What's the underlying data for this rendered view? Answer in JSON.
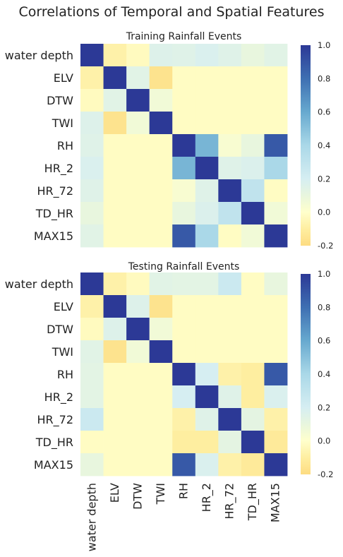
{
  "title": "Correlations of Temporal and Spatial Features",
  "chart_data": [
    {
      "type": "heatmap",
      "title": "Training Rainfall Events",
      "row_labels": [
        "water depth",
        "ELV",
        "DTW",
        "TWI",
        "RH",
        "HR_2",
        "HR_72",
        "TD_HR",
        "MAX15"
      ],
      "col_labels": [
        "water depth",
        "ELV",
        "DTW",
        "TWI",
        "RH",
        "HR_2",
        "HR_72",
        "TD_HR",
        "MAX15"
      ],
      "matrix": [
        [
          1.0,
          -0.08,
          -0.03,
          0.16,
          0.15,
          0.18,
          0.15,
          0.1,
          0.14
        ],
        [
          -0.08,
          1.0,
          0.14,
          -0.16,
          -0.02,
          -0.02,
          -0.02,
          -0.02,
          -0.02
        ],
        [
          -0.03,
          0.14,
          1.0,
          0.06,
          -0.02,
          -0.02,
          -0.02,
          -0.02,
          -0.02
        ],
        [
          0.16,
          -0.16,
          0.06,
          1.0,
          -0.02,
          -0.02,
          -0.02,
          -0.02,
          -0.02
        ],
        [
          0.15,
          -0.02,
          -0.02,
          -0.02,
          1.0,
          0.55,
          0.03,
          0.1,
          0.88
        ],
        [
          0.18,
          -0.02,
          -0.02,
          -0.02,
          0.55,
          1.0,
          0.15,
          0.17,
          0.4
        ],
        [
          0.15,
          -0.02,
          -0.02,
          -0.02,
          0.03,
          0.15,
          1.0,
          0.3,
          -0.02
        ],
        [
          0.1,
          -0.02,
          -0.02,
          -0.02,
          0.1,
          0.17,
          0.3,
          1.0,
          0.06
        ],
        [
          0.14,
          -0.02,
          -0.02,
          -0.02,
          0.88,
          0.4,
          -0.02,
          0.06,
          1.0
        ]
      ],
      "colorbar": {
        "min": -0.2,
        "max": 1.0,
        "ticks": [
          "1.0",
          "0.8",
          "0.6",
          "0.4",
          "0.2",
          "0.0",
          "-0.2"
        ]
      },
      "colormap": "RdYlBu-like (yellow to blue)"
    },
    {
      "type": "heatmap",
      "title": "Testing Rainfall Events",
      "row_labels": [
        "water depth",
        "ELV",
        "DTW",
        "TWI",
        "RH",
        "HR_2",
        "HR_72",
        "TD_HR",
        "MAX15"
      ],
      "col_labels": [
        "water depth",
        "ELV",
        "DTW",
        "TWI",
        "RH",
        "HR_2",
        "HR_72",
        "TD_HR",
        "MAX15"
      ],
      "matrix": [
        [
          1.0,
          -0.08,
          -0.03,
          0.14,
          0.13,
          0.13,
          0.25,
          -0.02,
          0.1
        ],
        [
          -0.08,
          1.0,
          0.16,
          -0.16,
          -0.02,
          -0.02,
          -0.02,
          -0.02,
          -0.02
        ],
        [
          -0.03,
          0.16,
          1.0,
          0.06,
          -0.02,
          -0.02,
          -0.02,
          -0.02,
          -0.02
        ],
        [
          0.14,
          -0.16,
          0.06,
          1.0,
          -0.02,
          -0.02,
          -0.02,
          -0.02,
          -0.02
        ],
        [
          0.13,
          -0.02,
          -0.02,
          -0.02,
          1.0,
          0.2,
          -0.08,
          -0.1,
          0.88
        ],
        [
          0.13,
          -0.02,
          -0.02,
          -0.02,
          0.2,
          1.0,
          0.15,
          -0.1,
          0.18
        ],
        [
          0.25,
          -0.02,
          -0.02,
          -0.02,
          -0.08,
          0.15,
          1.0,
          0.12,
          -0.08
        ],
        [
          -0.02,
          -0.02,
          -0.02,
          -0.02,
          -0.1,
          -0.1,
          0.12,
          1.0,
          -0.12
        ],
        [
          0.1,
          -0.02,
          -0.02,
          -0.02,
          0.88,
          0.18,
          -0.08,
          -0.12,
          1.0
        ]
      ],
      "colorbar": {
        "min": -0.2,
        "max": 1.0,
        "ticks": [
          "1.0",
          "0.8",
          "0.6",
          "0.4",
          "0.2",
          "0.0",
          "-0.2"
        ]
      },
      "colormap": "RdYlBu-like (yellow to blue)"
    }
  ]
}
